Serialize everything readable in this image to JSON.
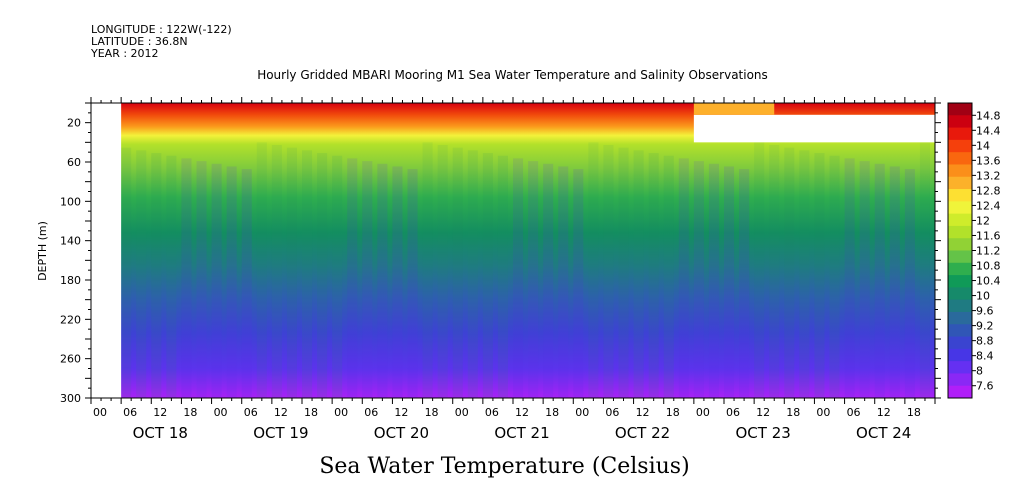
{
  "header": {
    "longitude": "LONGITUDE : 122W(-122)",
    "latitude": "LATITUDE : 36.8N",
    "year": "YEAR : 2012"
  },
  "chart_data": {
    "type": "heatmap",
    "title": "Hourly Gridded MBARI Mooring M1 Sea Water Temperature and Salinity Observations",
    "colorbar_title": "Sea Water Temperature (Celsius)",
    "ylabel": "DEPTH (m)",
    "ylim": [
      300,
      0
    ],
    "y_axis": "depth increasing downward",
    "y_ticks": [
      20,
      60,
      100,
      140,
      180,
      220,
      260,
      300
    ],
    "x_start": "OCT 18 00",
    "x_end": "OCT 24 23",
    "x_hour_ticks": [
      "00",
      "06",
      "12",
      "18",
      "00",
      "06",
      "12",
      "18",
      "00",
      "06",
      "12",
      "18",
      "00",
      "06",
      "12",
      "18",
      "00",
      "06",
      "12",
      "18",
      "00",
      "06",
      "12",
      "18",
      "00",
      "06",
      "12",
      "18"
    ],
    "x_date_labels": [
      "OCT 18",
      "OCT 19",
      "OCT 20",
      "OCT 21",
      "OCT 22",
      "OCT 23",
      "OCT 24"
    ],
    "missing_data": [
      {
        "from": "OCT 18 00",
        "to": "OCT 18 06",
        "depth_from": 0,
        "depth_to": 300
      },
      {
        "from": "OCT 23 00",
        "to": "OCT 24 23",
        "depth_from": 12,
        "depth_to": 40
      }
    ],
    "colorbar_labels": [
      "14.8",
      "14.4",
      "14",
      "13.6",
      "13.2",
      "12.8",
      "12.4",
      "12",
      "11.6",
      "11.2",
      "10.8",
      "10.4",
      "10",
      "9.6",
      "9.2",
      "8.8",
      "8.4",
      "8",
      "7.6"
    ],
    "colorbar_colors": [
      "#a10014",
      "#cc0010",
      "#e8190c",
      "#f5400c",
      "#f9670f",
      "#fb8f1a",
      "#fcb12a",
      "#fde032",
      "#f0f43a",
      "#cfec2b",
      "#b2e12a",
      "#91d235",
      "#64c348",
      "#2fae4e",
      "#109a58",
      "#168a6a",
      "#1f7b82",
      "#2a6a9c",
      "#3056b6",
      "#3a44d0",
      "#4736e6",
      "#6530f2",
      "#8a28f5",
      "#b01ff8"
    ],
    "depth_profile": [
      {
        "depth": 5,
        "temp": 14.6
      },
      {
        "depth": 18,
        "temp": 13.8
      },
      {
        "depth": 28,
        "temp": 12.6
      },
      {
        "depth": 40,
        "temp": 11.6
      },
      {
        "depth": 60,
        "temp": 11.0
      },
      {
        "depth": 90,
        "temp": 10.4
      },
      {
        "depth": 120,
        "temp": 9.9
      },
      {
        "depth": 160,
        "temp": 9.3
      },
      {
        "depth": 200,
        "temp": 8.9
      },
      {
        "depth": 240,
        "temp": 8.4
      },
      {
        "depth": 280,
        "temp": 7.9
      },
      {
        "depth": 300,
        "temp": 7.6
      }
    ]
  }
}
